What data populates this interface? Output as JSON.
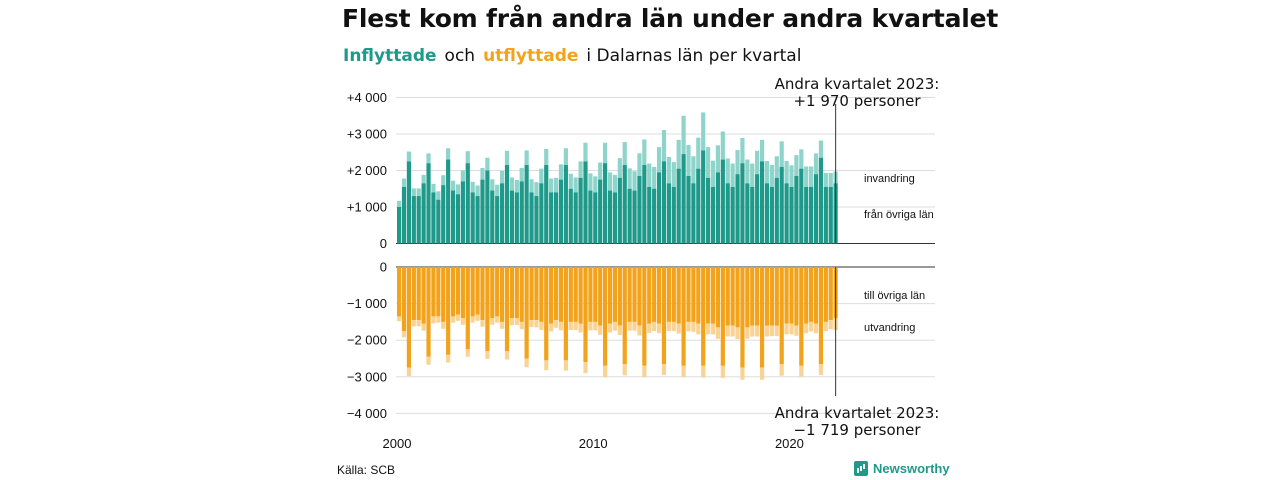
{
  "title": "Flest kom från andra län under andra kvartalet",
  "subtitle": {
    "inflyttade": "Inflyttade",
    "och": "och",
    "utflyttade": "utflyttade",
    "rest": "i Dalarnas  län  per  kvartal"
  },
  "source": "Källa: SCB",
  "logo": "Newsworthy",
  "colors": {
    "in_dark": "#1f9a8a",
    "in_light": "#8fd4cb",
    "out_dark": "#f2a31b",
    "out_light": "#f9d394"
  },
  "chart_data": {
    "type": "bar",
    "x_labels": [
      "2000",
      "2010",
      "2020"
    ],
    "top_y_ticks": [
      "+4 000",
      "+3 000",
      "+2 000",
      "+1 000",
      "0"
    ],
    "bottom_y_ticks": [
      "0",
      "−1 000",
      "−2 000",
      "−3 000",
      "−4 000"
    ],
    "top_ylim": [
      0,
      4000
    ],
    "bottom_ylim": [
      -4000,
      0
    ],
    "labels": {
      "invandring": "invandring",
      "fran_ovriga_lan": "från övriga län",
      "till_ovriga_lan": "till övriga län",
      "utvandring": "utvandring"
    },
    "annotation_top": {
      "line1": "Andra kvartalet 2023:",
      "line2": "+1 970 personer"
    },
    "annotation_bottom": {
      "line1": "Andra kvartalet 2023:",
      "line2": "−1 719 personer"
    },
    "quarter_start": "2000 Q1",
    "series": [
      {
        "name": "från övriga län",
        "values": [
          1000,
          1550,
          2250,
          1300,
          1300,
          1650,
          2200,
          1400,
          1200,
          1600,
          2300,
          1450,
          1350,
          1700,
          2200,
          1400,
          1300,
          1750,
          2000,
          1450,
          1300,
          1650,
          2150,
          1450,
          1400,
          1700,
          2150,
          1400,
          1300,
          1650,
          2150,
          1400,
          1400,
          1750,
          2150,
          1500,
          1400,
          1800,
          2250,
          1450,
          1400,
          1750,
          2200,
          1450,
          1400,
          1800,
          2150,
          1500,
          1450,
          1850,
          2150,
          1550,
          1500,
          1950,
          2250,
          1650,
          1550,
          2050,
          2450,
          1850,
          1650,
          2050,
          2550,
          1800,
          1550,
          1950,
          2300,
          1650,
          1550,
          1900,
          2200,
          1650,
          1550,
          1900,
          2250,
          1650,
          1550,
          1800,
          2100,
          1650,
          1550,
          1850,
          2050,
          1550,
          1550,
          1900,
          2350,
          1550,
          1550,
          1650
        ]
      },
      {
        "name": "invandring",
        "values": [
          170,
          230,
          270,
          210,
          210,
          230,
          270,
          230,
          230,
          270,
          310,
          270,
          270,
          300,
          330,
          290,
          290,
          320,
          350,
          310,
          310,
          340,
          390,
          360,
          340,
          370,
          400,
          360,
          380,
          400,
          440,
          380,
          400,
          420,
          460,
          410,
          410,
          450,
          510,
          470,
          440,
          470,
          560,
          500,
          480,
          540,
          630,
          560,
          530,
          620,
          700,
          640,
          600,
          690,
          860,
          720,
          680,
          790,
          1050,
          850,
          740,
          850,
          1040,
          840,
          720,
          740,
          770,
          680,
          640,
          660,
          690,
          650,
          640,
          640,
          590,
          610,
          600,
          590,
          700,
          610,
          590,
          570,
          530,
          560,
          560,
          570,
          470,
          380,
          380,
          320
        ]
      },
      {
        "name": "till övriga län",
        "values": [
          -1350,
          -1750,
          -2750,
          -1450,
          -1450,
          -1550,
          -2450,
          -1350,
          -1350,
          -1500,
          -2400,
          -1350,
          -1300,
          -1400,
          -2250,
          -1350,
          -1300,
          -1450,
          -2300,
          -1400,
          -1350,
          -1500,
          -2300,
          -1400,
          -1400,
          -1500,
          -2500,
          -1450,
          -1450,
          -1500,
          -2550,
          -1550,
          -1450,
          -1500,
          -2550,
          -1500,
          -1500,
          -1550,
          -2600,
          -1500,
          -1500,
          -1600,
          -2700,
          -1550,
          -1500,
          -1600,
          -2650,
          -1500,
          -1500,
          -1600,
          -2700,
          -1550,
          -1500,
          -1550,
          -2650,
          -1500,
          -1500,
          -1550,
          -2700,
          -1500,
          -1500,
          -1550,
          -2700,
          -1550,
          -1550,
          -1650,
          -2700,
          -1600,
          -1600,
          -1650,
          -2750,
          -1650,
          -1600,
          -1600,
          -2750,
          -1600,
          -1600,
          -1600,
          -2650,
          -1550,
          -1550,
          -1600,
          -2700,
          -1550,
          -1500,
          -1550,
          -2650,
          -1500,
          -1450,
          -1400
        ]
      },
      {
        "name": "utvandring",
        "values": [
          -130,
          -170,
          -230,
          -170,
          -170,
          -190,
          -220,
          -190,
          -170,
          -190,
          -210,
          -170,
          -170,
          -180,
          -200,
          -170,
          -170,
          -180,
          -210,
          -180,
          -170,
          -190,
          -230,
          -190,
          -190,
          -200,
          -240,
          -190,
          -200,
          -220,
          -270,
          -210,
          -210,
          -230,
          -280,
          -220,
          -220,
          -240,
          -300,
          -230,
          -230,
          -250,
          -310,
          -240,
          -240,
          -260,
          -310,
          -240,
          -240,
          -270,
          -310,
          -250,
          -250,
          -260,
          -300,
          -250,
          -250,
          -270,
          -300,
          -260,
          -270,
          -290,
          -320,
          -290,
          -290,
          -310,
          -330,
          -300,
          -300,
          -320,
          -330,
          -310,
          -300,
          -300,
          -330,
          -300,
          -290,
          -290,
          -320,
          -290,
          -290,
          -280,
          -290,
          -260,
          -260,
          -260,
          -300,
          -250,
          -250,
          -320
        ]
      }
    ]
  }
}
